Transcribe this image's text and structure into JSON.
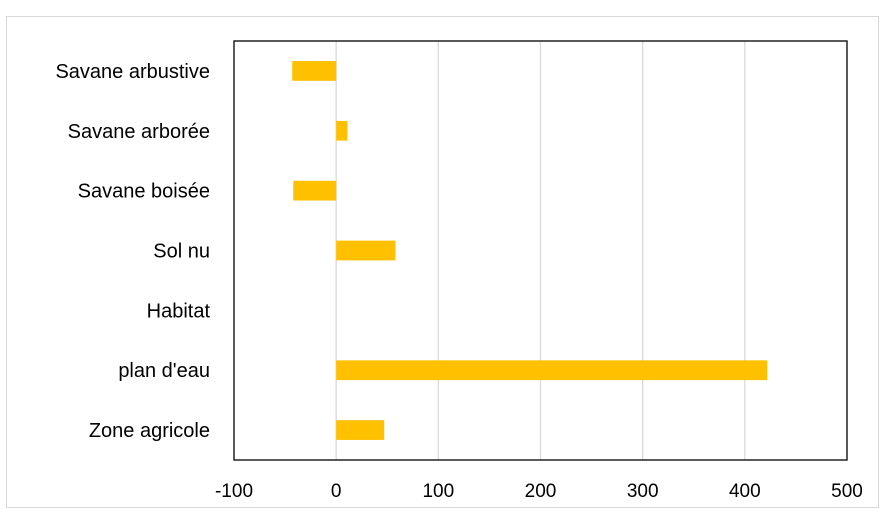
{
  "chart_data": {
    "type": "bar",
    "orientation": "horizontal",
    "categories": [
      "Savane arbustive",
      "Savane arborée",
      "Savane boisée",
      "Sol nu",
      "Habitat",
      "plan d'eau",
      "Zone agricole"
    ],
    "values": [
      -43,
      11,
      -42,
      58,
      0,
      422,
      47
    ],
    "xlim": [
      -100,
      500
    ],
    "xticks": [
      "-100",
      "0",
      "100",
      "200",
      "300",
      "400",
      "500"
    ],
    "title": "",
    "xlabel": "",
    "ylabel": "",
    "grid": "vertical",
    "legend": "none",
    "colors": {
      "bar": "#ffc000",
      "grid": "#d9d9d9",
      "frame": "#000000"
    }
  }
}
